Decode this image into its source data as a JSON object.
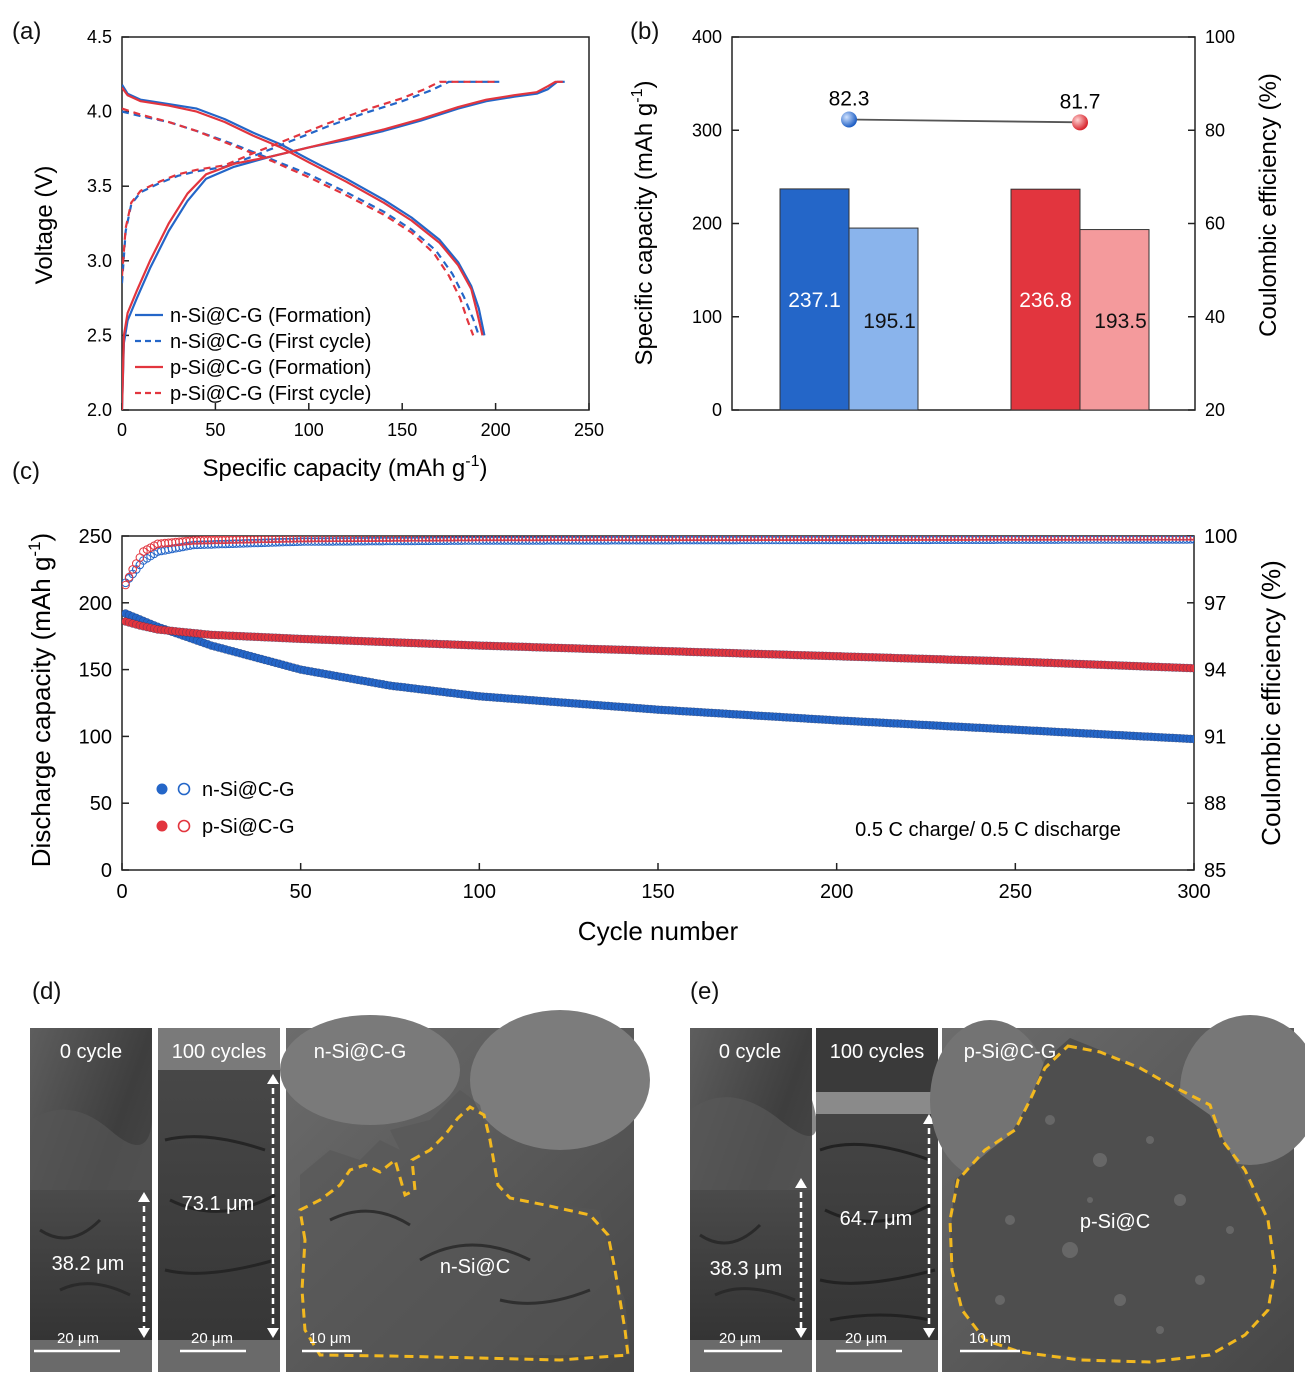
{
  "colors": {
    "blue": "#2466c8",
    "blue_light": "#8ab4ec",
    "red": "#e2353e",
    "red_light": "#f49a9c",
    "dash_yellow": "#f2b81f",
    "sem_dark": "#3c3c3c"
  },
  "panel_letters": {
    "a": "(a)",
    "b": "(b)",
    "c": "(c)",
    "d": "(d)",
    "e": "(e)"
  },
  "chart_data": [
    {
      "panel": "a",
      "type": "line",
      "xlabel": "Specific capacity (mAh g",
      "xlabel_sup": "-1",
      "xlabel_end": ")",
      "ylabel": "Voltage (V)",
      "xlim": [
        0,
        250
      ],
      "ylim": [
        2.0,
        4.5
      ],
      "xticks": [
        "0",
        "50",
        "100",
        "150",
        "200",
        "250"
      ],
      "yticks": [
        "2.0",
        "2.5",
        "3.0",
        "3.5",
        "4.0",
        "4.5"
      ],
      "legend": [
        "n-Si@C-G (Formation)",
        "n-Si@C-G (First cycle)",
        "p-Si@C-G (Formation)",
        "p-Si@C-G (First cycle)"
      ],
      "series": [
        {
          "name": "n-Si@C-G (Formation) charge",
          "color": "blue",
          "dash": false,
          "points": [
            [
              0,
              2.0
            ],
            [
              1,
              2.45
            ],
            [
              3,
              2.6
            ],
            [
              8,
              2.75
            ],
            [
              15,
              2.95
            ],
            [
              25,
              3.2
            ],
            [
              35,
              3.4
            ],
            [
              45,
              3.55
            ],
            [
              60,
              3.63
            ],
            [
              80,
              3.7
            ],
            [
              100,
              3.76
            ],
            [
              120,
              3.81
            ],
            [
              140,
              3.87
            ],
            [
              160,
              3.94
            ],
            [
              180,
              4.02
            ],
            [
              195,
              4.07
            ],
            [
              210,
              4.1
            ],
            [
              222,
              4.12
            ],
            [
              228,
              4.15
            ],
            [
              233,
              4.2
            ],
            [
              237,
              4.2
            ]
          ]
        },
        {
          "name": "n-Si@C-G (Formation) discharge",
          "color": "blue",
          "dash": false,
          "points": [
            [
              0,
              4.18
            ],
            [
              3,
              4.12
            ],
            [
              10,
              4.08
            ],
            [
              25,
              4.05
            ],
            [
              40,
              4.02
            ],
            [
              55,
              3.95
            ],
            [
              70,
              3.86
            ],
            [
              85,
              3.78
            ],
            [
              100,
              3.68
            ],
            [
              120,
              3.55
            ],
            [
              140,
              3.41
            ],
            [
              155,
              3.29
            ],
            [
              170,
              3.14
            ],
            [
              180,
              2.99
            ],
            [
              187,
              2.83
            ],
            [
              191,
              2.68
            ],
            [
              194,
              2.5
            ]
          ]
        },
        {
          "name": "n-Si@C-G (First cycle) charge",
          "color": "blue",
          "dash": true,
          "points": [
            [
              0,
              2.85
            ],
            [
              2,
              3.2
            ],
            [
              5,
              3.38
            ],
            [
              10,
              3.46
            ],
            [
              20,
              3.52
            ],
            [
              30,
              3.57
            ],
            [
              40,
              3.6
            ],
            [
              55,
              3.63
            ],
            [
              70,
              3.7
            ],
            [
              90,
              3.8
            ],
            [
              110,
              3.9
            ],
            [
              130,
              3.99
            ],
            [
              150,
              4.07
            ],
            [
              165,
              4.14
            ],
            [
              175,
              4.2
            ],
            [
              202,
              4.2
            ]
          ]
        },
        {
          "name": "n-Si@C-G (First cycle) discharge",
          "color": "blue",
          "dash": true,
          "points": [
            [
              0,
              4.0
            ],
            [
              10,
              3.97
            ],
            [
              25,
              3.93
            ],
            [
              40,
              3.87
            ],
            [
              60,
              3.78
            ],
            [
              80,
              3.68
            ],
            [
              100,
              3.58
            ],
            [
              120,
              3.46
            ],
            [
              140,
              3.33
            ],
            [
              155,
              3.21
            ],
            [
              168,
              3.07
            ],
            [
              177,
              2.91
            ],
            [
              183,
              2.76
            ],
            [
              188,
              2.61
            ],
            [
              191,
              2.5
            ]
          ]
        },
        {
          "name": "p-Si@C-G (Formation) charge",
          "color": "red",
          "dash": false,
          "points": [
            [
              0,
              2.0
            ],
            [
              1,
              2.5
            ],
            [
              3,
              2.65
            ],
            [
              8,
              2.8
            ],
            [
              15,
              3.0
            ],
            [
              25,
              3.25
            ],
            [
              35,
              3.45
            ],
            [
              45,
              3.58
            ],
            [
              60,
              3.65
            ],
            [
              80,
              3.7
            ],
            [
              100,
              3.76
            ],
            [
              120,
              3.82
            ],
            [
              140,
              3.88
            ],
            [
              160,
              3.95
            ],
            [
              180,
              4.03
            ],
            [
              195,
              4.08
            ],
            [
              210,
              4.11
            ],
            [
              222,
              4.13
            ],
            [
              228,
              4.17
            ],
            [
              232,
              4.2
            ],
            [
              236,
              4.2
            ]
          ]
        },
        {
          "name": "p-Si@C-G (Formation) discharge",
          "color": "red",
          "dash": false,
          "points": [
            [
              0,
              4.16
            ],
            [
              3,
              4.11
            ],
            [
              10,
              4.07
            ],
            [
              25,
              4.04
            ],
            [
              40,
              4.0
            ],
            [
              55,
              3.93
            ],
            [
              70,
              3.84
            ],
            [
              85,
              3.76
            ],
            [
              100,
              3.66
            ],
            [
              120,
              3.53
            ],
            [
              140,
              3.39
            ],
            [
              155,
              3.27
            ],
            [
              170,
              3.12
            ],
            [
              180,
              2.97
            ],
            [
              187,
              2.81
            ],
            [
              190,
              2.66
            ],
            [
              193,
              2.5
            ]
          ]
        },
        {
          "name": "p-Si@C-G (First cycle) charge",
          "color": "red",
          "dash": true,
          "points": [
            [
              0,
              2.9
            ],
            [
              2,
              3.22
            ],
            [
              5,
              3.39
            ],
            [
              10,
              3.47
            ],
            [
              20,
              3.53
            ],
            [
              30,
              3.58
            ],
            [
              40,
              3.61
            ],
            [
              55,
              3.64
            ],
            [
              70,
              3.72
            ],
            [
              90,
              3.82
            ],
            [
              110,
              3.92
            ],
            [
              130,
              4.01
            ],
            [
              150,
              4.09
            ],
            [
              162,
              4.15
            ],
            [
              170,
              4.2
            ],
            [
              200,
              4.2
            ]
          ]
        },
        {
          "name": "p-Si@C-G (First cycle) discharge",
          "color": "red",
          "dash": true,
          "points": [
            [
              0,
              4.02
            ],
            [
              10,
              3.98
            ],
            [
              25,
              3.93
            ],
            [
              40,
              3.87
            ],
            [
              60,
              3.77
            ],
            [
              80,
              3.67
            ],
            [
              100,
              3.56
            ],
            [
              120,
              3.44
            ],
            [
              140,
              3.31
            ],
            [
              155,
              3.19
            ],
            [
              167,
              3.05
            ],
            [
              175,
              2.9
            ],
            [
              181,
              2.75
            ],
            [
              185,
              2.6
            ],
            [
              188,
              2.5
            ]
          ]
        }
      ]
    },
    {
      "panel": "b",
      "type": "bar",
      "ylabel": "Specific capacity (mAh g",
      "ylabel_sup": "-1",
      "ylabel_end": ")",
      "y2label": "Coulombic efficiency (%)",
      "ylim": [
        0,
        400
      ],
      "y2lim": [
        20,
        100
      ],
      "yticks": [
        "0",
        "100",
        "200",
        "300",
        "400"
      ],
      "y2ticks": [
        "20",
        "40",
        "60",
        "80",
        "100"
      ],
      "bars": [
        {
          "label": "237.1",
          "value": 237.1,
          "color": "blue"
        },
        {
          "label": "195.1",
          "value": 195.1,
          "color": "blue_light"
        },
        {
          "label": "236.8",
          "value": 236.8,
          "color": "red"
        },
        {
          "label": "193.5",
          "value": 193.5,
          "color": "red_light"
        }
      ],
      "efficiency": [
        {
          "label": "82.3",
          "value": 82.3,
          "color": "blue"
        },
        {
          "label": "81.7",
          "value": 81.7,
          "color": "red"
        }
      ]
    },
    {
      "panel": "c",
      "type": "scatter",
      "xlabel": "Cycle number",
      "ylabel": "Discharge capacity (mAh g",
      "ylabel_sup": "-1",
      "ylabel_end": ")",
      "y2label": "Coulombic efficiency (%)",
      "xlim": [
        0,
        300
      ],
      "ylim": [
        0,
        250
      ],
      "y2lim": [
        85,
        100
      ],
      "xticks": [
        "0",
        "50",
        "100",
        "150",
        "200",
        "250",
        "300"
      ],
      "yticks": [
        "0",
        "50",
        "100",
        "150",
        "200",
        "250"
      ],
      "y2ticks": [
        "85",
        "88",
        "91",
        "94",
        "97",
        "100"
      ],
      "annotation": "0.5 C charge/ 0.5 C discharge",
      "legend": [
        "n-Si@C-G",
        "p-Si@C-G"
      ],
      "series": [
        {
          "name": "n-Si@C-G capacity",
          "color": "blue",
          "filled": true,
          "points": [
            [
              1,
              192
            ],
            [
              10,
              182
            ],
            [
              25,
              168
            ],
            [
              50,
              150
            ],
            [
              75,
              138
            ],
            [
              100,
              130
            ],
            [
              150,
              120
            ],
            [
              200,
              112
            ],
            [
              250,
              105
            ],
            [
              300,
              98
            ]
          ]
        },
        {
          "name": "p-Si@C-G capacity",
          "color": "red",
          "filled": true,
          "points": [
            [
              1,
              186
            ],
            [
              5,
              183
            ],
            [
              10,
              180
            ],
            [
              25,
              176
            ],
            [
              50,
              173
            ],
            [
              100,
              168
            ],
            [
              150,
              164
            ],
            [
              200,
              160
            ],
            [
              250,
              156
            ],
            [
              300,
              151
            ]
          ]
        },
        {
          "name": "n-Si@C-G CE",
          "color": "blue",
          "filled": false,
          "axis": "y2",
          "points": [
            [
              1,
              97.9
            ],
            [
              3,
              98.3
            ],
            [
              6,
              98.9
            ],
            [
              10,
              99.3
            ],
            [
              20,
              99.6
            ],
            [
              50,
              99.75
            ],
            [
              100,
              99.8
            ],
            [
              300,
              99.85
            ]
          ]
        },
        {
          "name": "p-Si@C-G CE",
          "color": "red",
          "filled": false,
          "axis": "y2",
          "points": [
            [
              1,
              97.8
            ],
            [
              3,
              98.5
            ],
            [
              6,
              99.3
            ],
            [
              10,
              99.65
            ],
            [
              20,
              99.8
            ],
            [
              50,
              99.9
            ],
            [
              100,
              99.95
            ],
            [
              300,
              99.98
            ]
          ]
        }
      ]
    }
  ],
  "sem_d": {
    "img1": {
      "title": "0 cycle",
      "thickness": "38.2 μm",
      "scale": "20 μm"
    },
    "img2": {
      "title": "100 cycles",
      "thickness": "73.1 μm",
      "scale": "20 μm"
    },
    "img3": {
      "title": "n-Si@C-G",
      "particle": "n-Si@C",
      "scale": "10 μm"
    }
  },
  "sem_e": {
    "img1": {
      "title": "0 cycle",
      "thickness": "38.3 μm",
      "scale": "20 μm"
    },
    "img2": {
      "title": "100 cycles",
      "thickness": "64.7 μm",
      "scale": "20 μm"
    },
    "img3": {
      "title": "p-Si@C-G",
      "particle": "p-Si@C",
      "scale": "10 μm"
    }
  }
}
